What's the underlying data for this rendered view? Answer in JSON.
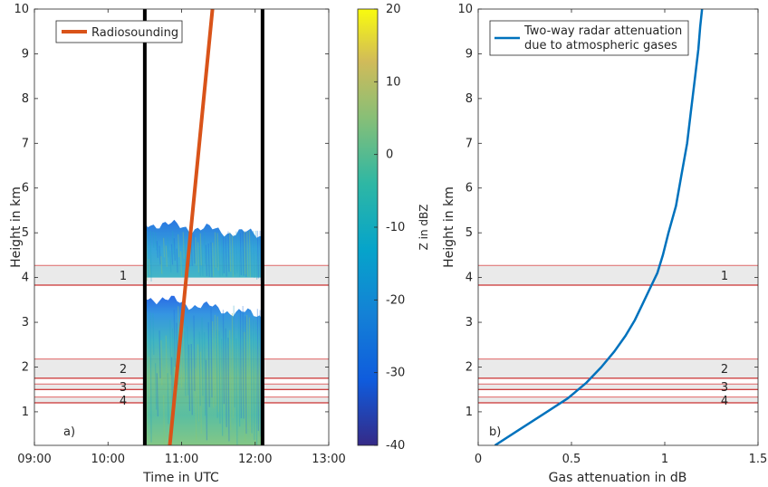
{
  "colors": {
    "sounding": "#d95319",
    "attenuation": "#0072bd",
    "band_fill": "#e6e6e6",
    "band_edge": "#e06666",
    "band_edge_dark": "#c00000",
    "axis": "#262626",
    "radar_low": "#2a3b9a",
    "radar_mid": "#2fa6b0",
    "radar_high": "#f8e621"
  },
  "chart_data": [
    {
      "type": "heatmap",
      "panel_label": "a)",
      "xlabel": "Time in UTC",
      "ylabel": "Height in km",
      "x_ticks": [
        "09:00",
        "10:00",
        "11:00",
        "12:00",
        "13:00"
      ],
      "x_tick_hours": [
        9,
        10,
        11,
        12,
        13
      ],
      "xlim": [
        9,
        13
      ],
      "y_ticks": [
        "1",
        "2",
        "3",
        "4",
        "5",
        "6",
        "7",
        "8",
        "9",
        "10"
      ],
      "ylim": [
        0.25,
        10
      ],
      "colorbar": {
        "label": "Z in dBZ",
        "range": [
          -40,
          20
        ],
        "ticks": [
          "20",
          "10",
          "0",
          "-10",
          "-20",
          "-30",
          "-40"
        ]
      },
      "radar_period": [
        10.5,
        12.1
      ],
      "echo_layers": [
        {
          "t_start": 10.5,
          "t_end": 12.1,
          "bottom": 4.0,
          "top": 5.35
        },
        {
          "t_start": 10.5,
          "t_end": 12.1,
          "bottom": 0.25,
          "top": 3.7
        }
      ],
      "vertical_markers": [
        10.5,
        12.1
      ],
      "series": [
        {
          "name": "Radiosounding",
          "x": [
            10.84,
            11.42
          ],
          "y": [
            0.25,
            10
          ]
        }
      ],
      "bands": [
        {
          "label": "1",
          "bottom": 3.83,
          "top": 4.27
        },
        {
          "label": "2",
          "bottom": 1.75,
          "top": 2.18
        },
        {
          "label": "3",
          "bottom": 1.5,
          "top": 1.62
        },
        {
          "label": "4",
          "bottom": 1.2,
          "top": 1.33
        }
      ],
      "legend_position": "top-left"
    },
    {
      "type": "line",
      "panel_label": "b)",
      "xlabel": "Gas attenuation in dB",
      "ylabel": "Height in km",
      "x_ticks": [
        "0",
        "0.5",
        "1",
        "1.5"
      ],
      "xlim": [
        0,
        1.5
      ],
      "y_ticks": [
        "1",
        "2",
        "3",
        "4",
        "5",
        "6",
        "7",
        "8",
        "9",
        "10"
      ],
      "ylim": [
        0.25,
        10
      ],
      "series": [
        {
          "name": "Two-way radar attenuation due to atmospheric gases",
          "legend_lines": [
            "Two-way radar attenuation",
            "due to atmospheric gases"
          ],
          "x": [
            0.09,
            0.22,
            0.35,
            0.48,
            0.58,
            0.66,
            0.73,
            0.79,
            0.84,
            0.88,
            0.92,
            0.96,
            0.99,
            1.02,
            1.06,
            1.09,
            1.12,
            1.14,
            1.16,
            1.18,
            1.19,
            1.2
          ],
          "y": [
            0.25,
            0.6,
            0.95,
            1.3,
            1.65,
            2.0,
            2.35,
            2.7,
            3.05,
            3.4,
            3.75,
            4.1,
            4.5,
            5.0,
            5.6,
            6.3,
            7.0,
            7.7,
            8.4,
            9.1,
            9.6,
            10.0
          ]
        }
      ],
      "bands": [
        {
          "label": "1",
          "bottom": 3.83,
          "top": 4.27
        },
        {
          "label": "2",
          "bottom": 1.75,
          "top": 2.18
        },
        {
          "label": "3",
          "bottom": 1.5,
          "top": 1.62
        },
        {
          "label": "4",
          "bottom": 1.2,
          "top": 1.33
        }
      ],
      "legend_position": "top-left"
    }
  ]
}
